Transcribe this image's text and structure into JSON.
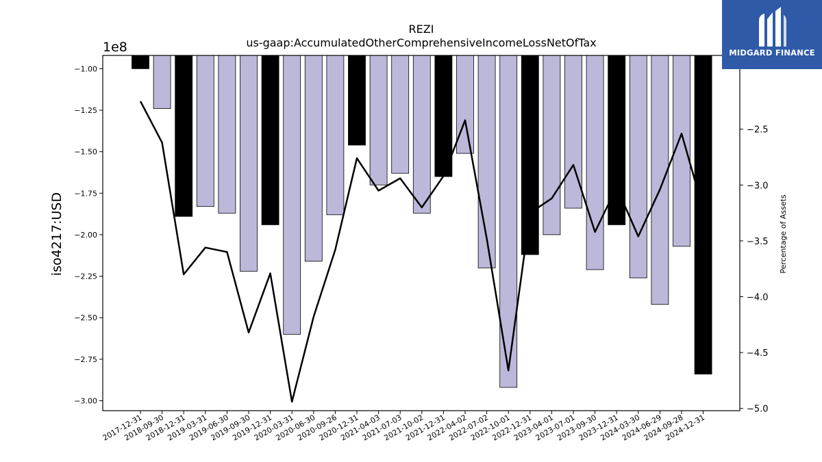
{
  "brand": {
    "name": "MIDGARD FINANCE",
    "logo_icon": "midgard-logo-icon",
    "color": "#2e5aa8"
  },
  "chart_data": {
    "type": "bar",
    "title": "REZI",
    "subtitle": "us-gaap:AccumulatedOtherComprehensiveIncomeLossNetOfTax",
    "ylabel": "iso4217:USD",
    "y2label": "Percentage of Assets",
    "y_offset_label": "1e8",
    "ylim": [
      -3.06,
      -0.92
    ],
    "y2lim": [
      -5.02,
      -1.84
    ],
    "yticks": [
      -1.0,
      -1.25,
      -1.5,
      -1.75,
      -2.0,
      -2.25,
      -2.5,
      -2.75,
      -3.0
    ],
    "ytick_labels": [
      "−1.00",
      "−1.25",
      "−1.50",
      "−1.75",
      "−2.00",
      "−2.25",
      "−2.50",
      "−2.75",
      "−3.00"
    ],
    "y2ticks": [
      -2.5,
      -3.0,
      -3.5,
      -4.0,
      -4.5,
      -5.0
    ],
    "y2tick_labels": [
      "−2.5",
      "−3.0",
      "−3.5",
      "−4.0",
      "−4.5",
      "−5.0"
    ],
    "categories": [
      "2017-12-31",
      "2018-09-30",
      "2018-12-31",
      "2019-03-31",
      "2019-06-30",
      "2019-09-30",
      "2019-12-31",
      "2020-03-31",
      "2020-06-30",
      "2020-09-26",
      "2020-12-31",
      "2021-04-03",
      "2021-07-03",
      "2021-10-02",
      "2021-12-31",
      "2022-04-02",
      "2022-07-02",
      "2022-10-01",
      "2022-12-31",
      "2023-04-01",
      "2023-07-01",
      "2023-09-30",
      "2023-12-31",
      "2024-03-30",
      "2024-06-29",
      "2024-09-28",
      "2024-12-31"
    ],
    "series": [
      {
        "name": "",
        "axis": "left",
        "kind": "bar",
        "values": [
          -1.0,
          -1.24,
          -1.89,
          -1.83,
          -1.87,
          -2.22,
          -1.94,
          -2.6,
          -2.16,
          -1.88,
          -1.46,
          -1.7,
          -1.63,
          -1.87,
          -1.65,
          -1.51,
          -2.2,
          -2.92,
          -2.12,
          -2.0,
          -1.84,
          -2.21,
          -1.94,
          -2.26,
          -2.42,
          -2.07,
          -2.84
        ],
        "fill_year_end": "#000000",
        "fill_other": "#bcb8da"
      },
      {
        "name": "",
        "axis": "right",
        "kind": "line",
        "color": "#000000",
        "values": [
          -2.25,
          -2.62,
          -3.8,
          -3.56,
          -3.6,
          -4.32,
          -3.79,
          -4.94,
          -4.18,
          -3.58,
          -2.76,
          -3.05,
          -2.94,
          -3.2,
          -2.92,
          -2.42,
          -3.48,
          -4.66,
          -3.25,
          -3.12,
          -2.82,
          -3.42,
          -3.02,
          -3.46,
          -3.04,
          -2.54,
          -3.22
        ]
      }
    ],
    "grid": false,
    "legend": "none"
  }
}
